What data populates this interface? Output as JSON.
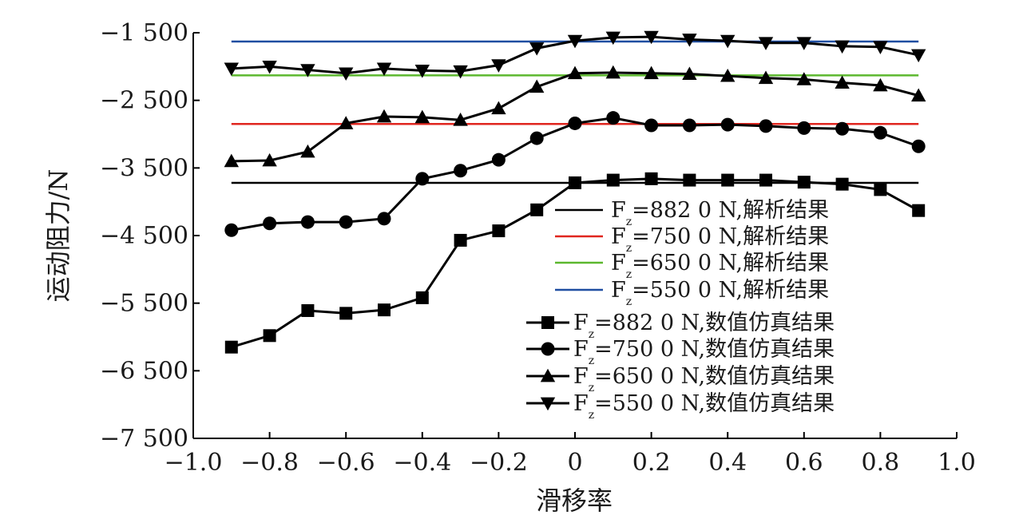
{
  "chart_data": {
    "type": "line",
    "xlabel": "滑移率",
    "ylabel": "运动阻力/N",
    "xlim": [
      -1.0,
      1.0
    ],
    "ylim": [
      -7500,
      -1500
    ],
    "x_ticks": [
      -1.0,
      -0.8,
      -0.6,
      -0.4,
      -0.2,
      0,
      0.2,
      0.4,
      0.6,
      0.8,
      1.0
    ],
    "x_tick_labels": [
      "−1.0",
      "−0.8",
      "−0.6",
      "−0.4",
      "−0.2",
      "0",
      "0.2",
      "0.4",
      "0.6",
      "0.8",
      "1.0"
    ],
    "y_ticks": [
      -1500,
      -2500,
      -3500,
      -4500,
      -5500,
      -6500,
      -7500
    ],
    "y_tick_labels": [
      "−1 500",
      "−2 500",
      "−3 500",
      "−4 500",
      "−5 500",
      "−6 500",
      "−7 500"
    ],
    "grid": false,
    "legend_position": "center-right",
    "x": [
      -0.9,
      -0.8,
      -0.7,
      -0.6,
      -0.5,
      -0.4,
      -0.3,
      -0.2,
      -0.1,
      0,
      0.1,
      0.2,
      0.3,
      0.4,
      0.5,
      0.6,
      0.7,
      0.8,
      0.9
    ],
    "analytic_series": [
      {
        "name": "F =882 0 N,解析结果",
        "subscript": "z",
        "value": -3720,
        "x_range": [
          -0.9,
          0.9
        ],
        "color": "#000000"
      },
      {
        "name": "F =750 0 N,解析结果",
        "subscript": "z",
        "value": -2850,
        "x_range": [
          -0.9,
          0.9
        ],
        "color": "#e0261f"
      },
      {
        "name": "F =650 0 N,解析结果",
        "subscript": "z",
        "value": -2130,
        "x_range": [
          -0.9,
          0.9
        ],
        "color": "#5cb82e"
      },
      {
        "name": "F =550 0 N,解析结果",
        "subscript": "z",
        "value": -1630,
        "x_range": [
          -0.9,
          0.9
        ],
        "color": "#1f4ea1"
      }
    ],
    "series": [
      {
        "name": "F =882 0 N,数值仿真结果",
        "subscript": "z",
        "marker": "square",
        "color": "#000000",
        "values": [
          -6150,
          -5980,
          -5610,
          -5650,
          -5600,
          -5420,
          -4570,
          -4430,
          -4120,
          -3720,
          -3680,
          -3660,
          -3680,
          -3680,
          -3680,
          -3710,
          -3740,
          -3820,
          -4130
        ]
      },
      {
        "name": "F =750 0 N,数值仿真结果",
        "subscript": "z",
        "marker": "circle",
        "color": "#000000",
        "values": [
          -4420,
          -4320,
          -4300,
          -4300,
          -4250,
          -3660,
          -3540,
          -3380,
          -3060,
          -2840,
          -2760,
          -2870,
          -2870,
          -2860,
          -2880,
          -2910,
          -2920,
          -2980,
          -3180
        ]
      },
      {
        "name": "F =650 0 N,数值仿真结果",
        "subscript": "z",
        "marker": "triangle-up",
        "color": "#000000",
        "values": [
          -3400,
          -3390,
          -3260,
          -2840,
          -2740,
          -2750,
          -2790,
          -2620,
          -2300,
          -2100,
          -2090,
          -2100,
          -2110,
          -2140,
          -2170,
          -2190,
          -2240,
          -2280,
          -2430
        ]
      },
      {
        "name": "F =550 0 N,数值仿真结果",
        "subscript": "z",
        "marker": "triangle-down",
        "color": "#000000",
        "values": [
          -2030,
          -2000,
          -2050,
          -2100,
          -2030,
          -2060,
          -2070,
          -1980,
          -1730,
          -1620,
          -1570,
          -1560,
          -1600,
          -1620,
          -1650,
          -1650,
          -1700,
          -1710,
          -1830
        ]
      }
    ]
  }
}
